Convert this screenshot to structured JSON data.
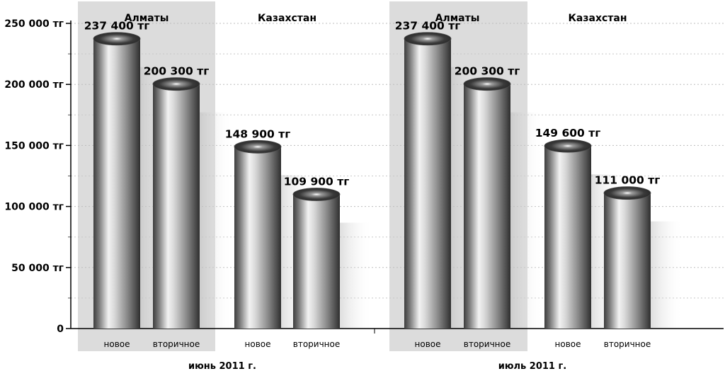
{
  "chart_data": {
    "type": "bar",
    "ylim": [
      0,
      250000
    ],
    "yticks": [
      {
        "value": 0,
        "label": "0"
      },
      {
        "value": 50000,
        "label": "50 000 тг"
      },
      {
        "value": 100000,
        "label": "100 000 тг"
      },
      {
        "value": 150000,
        "label": "150 000 тг"
      },
      {
        "value": 200000,
        "label": "200 000 тг"
      },
      {
        "value": 250000,
        "label": "250 000 тг"
      }
    ],
    "grid": true,
    "colors": {
      "highlight_band": "#dcdcdc",
      "bar_light": "#f4f4f4",
      "bar_dark": "#3a3a3a"
    },
    "periods": [
      {
        "label": "июнь 2011 г.",
        "regions": [
          {
            "name": "Алматы",
            "highlighted": true,
            "bars": [
              {
                "category": "новое",
                "value": 237400,
                "label": "237 400 тг"
              },
              {
                "category": "вторичное",
                "value": 200300,
                "label": "200 300 тг"
              }
            ]
          },
          {
            "name": "Казахстан",
            "highlighted": false,
            "bars": [
              {
                "category": "новое",
                "value": 148900,
                "label": "148 900 тг"
              },
              {
                "category": "вторичное",
                "value": 109900,
                "label": "109 900 тг"
              }
            ]
          }
        ]
      },
      {
        "label": "июль 2011 г.",
        "regions": [
          {
            "name": "Алматы",
            "highlighted": true,
            "bars": [
              {
                "category": "новое",
                "value": 237400,
                "label": "237 400 тг"
              },
              {
                "category": "вторичное",
                "value": 200300,
                "label": "200 300 тг"
              }
            ]
          },
          {
            "name": "Казахстан",
            "highlighted": false,
            "bars": [
              {
                "category": "новое",
                "value": 149600,
                "label": "149 600 тг"
              },
              {
                "category": "вторичное",
                "value": 111000,
                "label": "111 000 тг"
              }
            ]
          }
        ]
      }
    ]
  }
}
